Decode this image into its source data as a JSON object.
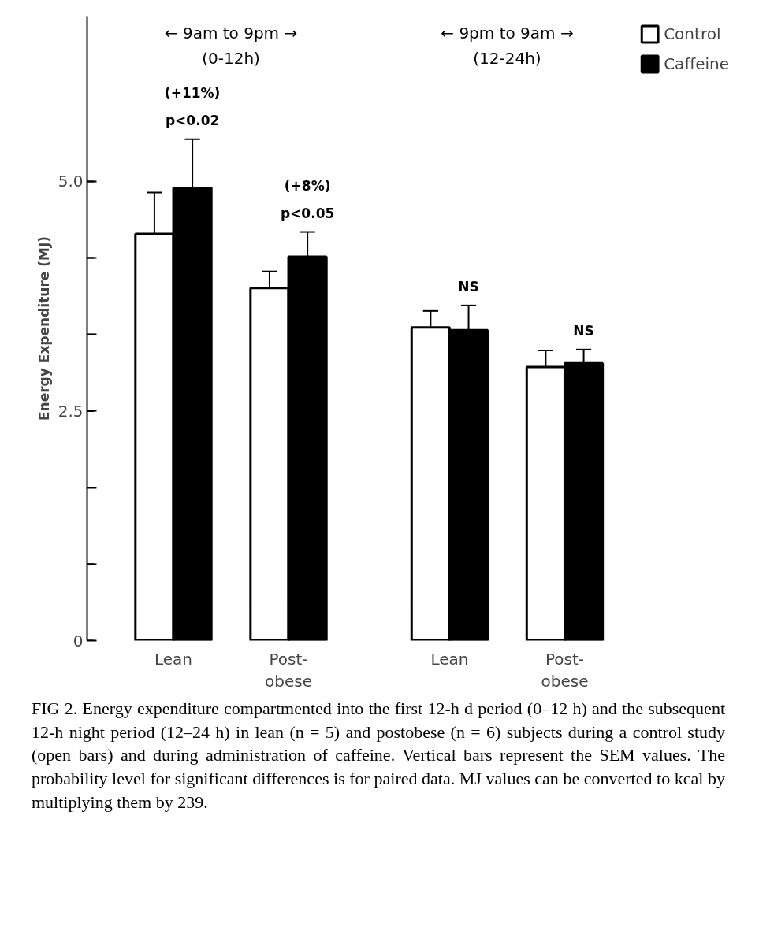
{
  "chart_data": {
    "type": "bar",
    "ylabel": "Energy Expenditure (MJ)",
    "categories": [
      "Lean",
      "Post-obese",
      "Lean",
      "Post-obese"
    ],
    "series": [
      {
        "name": "Control",
        "color": "#ffffff",
        "values": [
          4.43,
          3.84,
          3.41,
          2.98
        ],
        "errors": [
          0.45,
          0.18,
          0.18,
          0.18
        ]
      },
      {
        "name": "Caffeine",
        "color": "#000000",
        "values": [
          4.93,
          4.18,
          3.38,
          3.02
        ],
        "errors": [
          0.53,
          0.27,
          0.27,
          0.15
        ]
      }
    ],
    "ylim": [
      0,
      6.8
    ],
    "yticks": [
      0,
      {
        "value": 0.833,
        "label": null
      },
      {
        "value": 1.667,
        "label": null
      },
      2.5,
      {
        "value": 3.333,
        "label": null
      },
      {
        "value": 4.167,
        "label": null
      },
      {
        "value": 5,
        "label": "5.0"
      }
    ],
    "grid": false,
    "legend": "top right",
    "annotations": [
      "← 9am to 9pm → (0-12h)",
      "← 9pm to 9am → (12-24h)",
      "(+11%) p<0.02",
      "(+8%) p<0.05",
      "NS",
      "NS",
      "FIG 2. Energy expenditure compartmented into the first 12-h d period (0–12 h) and the subsequent 12-h night period (12–24 h) in lean (n = 5) and postobese (n = 6) subjects during a control study (open bars) and during administration of caffeine. Vertical bars represent the SEM values. The probability level for significant differences is for paired data. MJ values can be converted to kcal by multiplying them by 239."
    ]
  }
}
